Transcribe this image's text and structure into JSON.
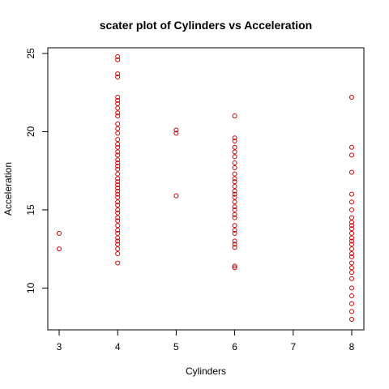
{
  "chart_data": {
    "type": "scatter",
    "title": "scater plot of Cylinders vs Acceleration",
    "xlabel": "Cylinders",
    "ylabel": "Acceleration",
    "xlim": [
      3,
      8
    ],
    "ylim": [
      8,
      25
    ],
    "xticks": [
      3,
      4,
      5,
      6,
      7,
      8
    ],
    "yticks": [
      10,
      15,
      20,
      25
    ],
    "grid": false,
    "point_color": "#cc0000",
    "marker": "open-circle",
    "points": [
      {
        "x": 3,
        "y": 13.5
      },
      {
        "x": 3,
        "y": 12.5
      },
      {
        "x": 4,
        "y": 24.8
      },
      {
        "x": 4,
        "y": 24.6
      },
      {
        "x": 4,
        "y": 23.7
      },
      {
        "x": 4,
        "y": 23.5
      },
      {
        "x": 4,
        "y": 22.2
      },
      {
        "x": 4,
        "y": 22.0
      },
      {
        "x": 4,
        "y": 21.8
      },
      {
        "x": 4,
        "y": 21.5
      },
      {
        "x": 4,
        "y": 21.2
      },
      {
        "x": 4,
        "y": 21.0
      },
      {
        "x": 4,
        "y": 20.5
      },
      {
        "x": 4,
        "y": 20.2
      },
      {
        "x": 4,
        "y": 19.9
      },
      {
        "x": 4,
        "y": 19.5
      },
      {
        "x": 4,
        "y": 19.2
      },
      {
        "x": 4,
        "y": 19.0
      },
      {
        "x": 4,
        "y": 18.7
      },
      {
        "x": 4,
        "y": 18.5
      },
      {
        "x": 4,
        "y": 18.2
      },
      {
        "x": 4,
        "y": 18.0
      },
      {
        "x": 4,
        "y": 17.8
      },
      {
        "x": 4,
        "y": 17.6
      },
      {
        "x": 4,
        "y": 17.3
      },
      {
        "x": 4,
        "y": 17.0
      },
      {
        "x": 4,
        "y": 16.8
      },
      {
        "x": 4,
        "y": 16.6
      },
      {
        "x": 4,
        "y": 16.4
      },
      {
        "x": 4,
        "y": 16.2
      },
      {
        "x": 4,
        "y": 16.0
      },
      {
        "x": 4,
        "y": 15.8
      },
      {
        "x": 4,
        "y": 15.5
      },
      {
        "x": 4,
        "y": 15.3
      },
      {
        "x": 4,
        "y": 15.0
      },
      {
        "x": 4,
        "y": 14.8
      },
      {
        "x": 4,
        "y": 14.5
      },
      {
        "x": 4,
        "y": 14.3
      },
      {
        "x": 4,
        "y": 14.0
      },
      {
        "x": 4,
        "y": 13.7
      },
      {
        "x": 4,
        "y": 13.5
      },
      {
        "x": 4,
        "y": 13.2
      },
      {
        "x": 4,
        "y": 13.0
      },
      {
        "x": 4,
        "y": 12.8
      },
      {
        "x": 4,
        "y": 12.5
      },
      {
        "x": 4,
        "y": 12.2
      },
      {
        "x": 4,
        "y": 11.6
      },
      {
        "x": 5,
        "y": 20.1
      },
      {
        "x": 5,
        "y": 19.9
      },
      {
        "x": 5,
        "y": 15.9
      },
      {
        "x": 6,
        "y": 21.0
      },
      {
        "x": 6,
        "y": 19.6
      },
      {
        "x": 6,
        "y": 19.4
      },
      {
        "x": 6,
        "y": 19.0
      },
      {
        "x": 6,
        "y": 18.7
      },
      {
        "x": 6,
        "y": 18.4
      },
      {
        "x": 6,
        "y": 18.0
      },
      {
        "x": 6,
        "y": 17.7
      },
      {
        "x": 6,
        "y": 17.3
      },
      {
        "x": 6,
        "y": 17.0
      },
      {
        "x": 6,
        "y": 16.8
      },
      {
        "x": 6,
        "y": 16.5
      },
      {
        "x": 6,
        "y": 16.2
      },
      {
        "x": 6,
        "y": 16.0
      },
      {
        "x": 6,
        "y": 15.8
      },
      {
        "x": 6,
        "y": 15.5
      },
      {
        "x": 6,
        "y": 15.2
      },
      {
        "x": 6,
        "y": 15.0
      },
      {
        "x": 6,
        "y": 14.7
      },
      {
        "x": 6,
        "y": 14.5
      },
      {
        "x": 6,
        "y": 14.0
      },
      {
        "x": 6,
        "y": 13.7
      },
      {
        "x": 6,
        "y": 13.5
      },
      {
        "x": 6,
        "y": 13.0
      },
      {
        "x": 6,
        "y": 12.8
      },
      {
        "x": 6,
        "y": 12.6
      },
      {
        "x": 6,
        "y": 11.4
      },
      {
        "x": 6,
        "y": 11.3
      },
      {
        "x": 8,
        "y": 22.2
      },
      {
        "x": 8,
        "y": 19.0
      },
      {
        "x": 8,
        "y": 18.5
      },
      {
        "x": 8,
        "y": 17.4
      },
      {
        "x": 8,
        "y": 16.0
      },
      {
        "x": 8,
        "y": 15.5
      },
      {
        "x": 8,
        "y": 15.0
      },
      {
        "x": 8,
        "y": 14.5
      },
      {
        "x": 8,
        "y": 14.2
      },
      {
        "x": 8,
        "y": 14.0
      },
      {
        "x": 8,
        "y": 13.8
      },
      {
        "x": 8,
        "y": 13.5
      },
      {
        "x": 8,
        "y": 13.2
      },
      {
        "x": 8,
        "y": 13.0
      },
      {
        "x": 8,
        "y": 12.8
      },
      {
        "x": 8,
        "y": 12.5
      },
      {
        "x": 8,
        "y": 12.2
      },
      {
        "x": 8,
        "y": 12.0
      },
      {
        "x": 8,
        "y": 11.6
      },
      {
        "x": 8,
        "y": 11.3
      },
      {
        "x": 8,
        "y": 11.0
      },
      {
        "x": 8,
        "y": 10.6
      },
      {
        "x": 8,
        "y": 10.0
      },
      {
        "x": 8,
        "y": 9.5
      },
      {
        "x": 8,
        "y": 9.0
      },
      {
        "x": 8,
        "y": 8.5
      },
      {
        "x": 8,
        "y": 8.0
      }
    ]
  }
}
